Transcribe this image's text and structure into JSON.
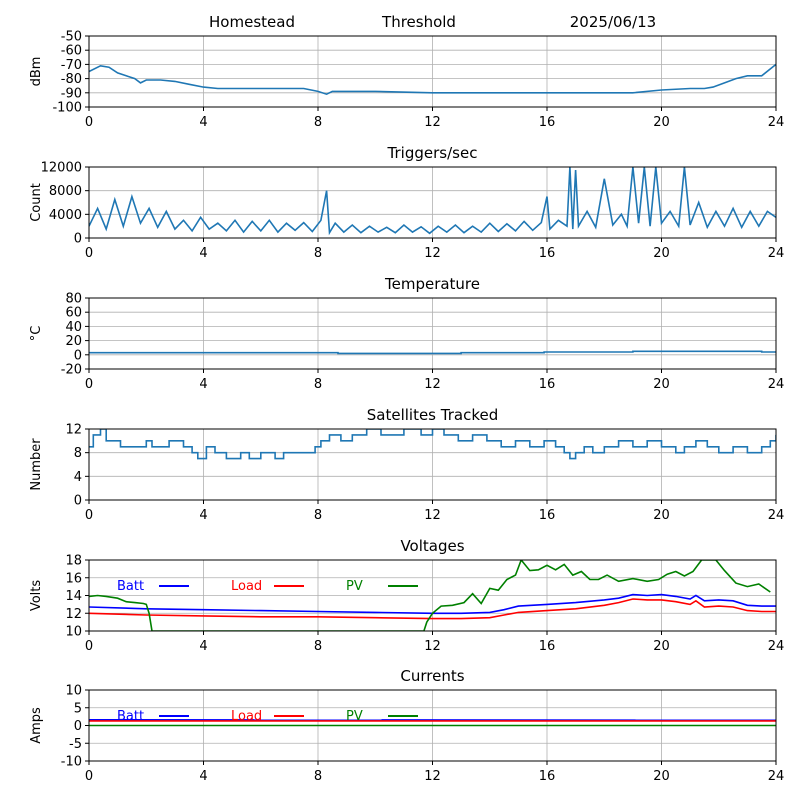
{
  "header": {
    "station": "Homestead",
    "mode": "Threshold",
    "date": "2025/06/13"
  },
  "colors": {
    "series_default": "#1f77b4",
    "batt": "#0000ff",
    "load": "#ff0000",
    "pv": "#008000",
    "grid": "#b0b0b0"
  },
  "chart_data": [
    {
      "type": "line",
      "title": "",
      "ylabel": "dBm",
      "xlim": [
        0,
        24
      ],
      "ylim": [
        -100,
        -50
      ],
      "xticks": [
        0,
        4,
        8,
        12,
        16,
        20,
        24
      ],
      "yticks": [
        -100,
        -90,
        -80,
        -70,
        -60,
        -50
      ],
      "grid": true,
      "series": [
        {
          "color": "#1f77b4",
          "x": [
            0,
            0.4,
            0.7,
            1.0,
            1.3,
            1.6,
            1.8,
            2.0,
            2.5,
            3.0,
            3.5,
            4.0,
            4.5,
            5.0,
            6.0,
            7.0,
            7.5,
            8.0,
            8.3,
            8.5,
            9.0,
            10.0,
            12.0,
            14.0,
            16.0,
            18.0,
            19.0,
            20.0,
            21.0,
            21.5,
            21.8,
            22.2,
            22.6,
            23.0,
            23.5,
            24.0
          ],
          "y": [
            -75,
            -71,
            -72,
            -76,
            -78,
            -80,
            -83,
            -81,
            -81,
            -82,
            -84,
            -86,
            -87,
            -87,
            -87,
            -87,
            -87,
            -89,
            -91,
            -89,
            -89,
            -89,
            -90,
            -90,
            -90,
            -90,
            -90,
            -88,
            -87,
            -87,
            -86,
            -83,
            -80,
            -78,
            -78,
            -70
          ]
        }
      ]
    },
    {
      "type": "line",
      "title": "Triggers/sec",
      "ylabel": "Count",
      "xlim": [
        0,
        24
      ],
      "ylim": [
        0,
        12000
      ],
      "xticks": [
        0,
        4,
        8,
        12,
        16,
        20,
        24
      ],
      "yticks": [
        0,
        4000,
        8000,
        12000
      ],
      "grid": true,
      "series": [
        {
          "color": "#1f77b4",
          "x": [
            0,
            0.3,
            0.6,
            0.9,
            1.2,
            1.5,
            1.8,
            2.1,
            2.4,
            2.7,
            3.0,
            3.3,
            3.6,
            3.9,
            4.2,
            4.5,
            4.8,
            5.1,
            5.4,
            5.7,
            6.0,
            6.3,
            6.6,
            6.9,
            7.2,
            7.5,
            7.8,
            8.1,
            8.3,
            8.4,
            8.6,
            8.9,
            9.2,
            9.5,
            9.8,
            10.1,
            10.4,
            10.7,
            11.0,
            11.3,
            11.6,
            11.9,
            12.2,
            12.5,
            12.8,
            13.1,
            13.4,
            13.7,
            14.0,
            14.3,
            14.6,
            14.9,
            15.2,
            15.5,
            15.8,
            16.0,
            16.1,
            16.4,
            16.7,
            16.8,
            16.9,
            17.0,
            17.1,
            17.4,
            17.7,
            18.0,
            18.3,
            18.6,
            18.8,
            19.0,
            19.2,
            19.4,
            19.6,
            19.8,
            20.0,
            20.3,
            20.6,
            20.8,
            21.0,
            21.3,
            21.6,
            21.9,
            22.2,
            22.5,
            22.8,
            23.1,
            23.4,
            23.7,
            24.0
          ],
          "y": [
            2000,
            5000,
            1500,
            6500,
            2000,
            7000,
            2500,
            5000,
            1800,
            4500,
            1500,
            3000,
            1200,
            3500,
            1500,
            2500,
            1200,
            3000,
            1000,
            2800,
            1200,
            3000,
            1000,
            2500,
            1300,
            2600,
            1100,
            3000,
            8000,
            900,
            2500,
            1000,
            2200,
            900,
            2000,
            1000,
            1800,
            900,
            2200,
            1000,
            1900,
            800,
            2000,
            1000,
            2200,
            900,
            2000,
            1000,
            2500,
            1100,
            2400,
            1200,
            2800,
            1300,
            2600,
            7000,
            1500,
            3000,
            2000,
            12000,
            1500,
            11500,
            2000,
            4500,
            1800,
            10000,
            2200,
            4000,
            2000,
            12000,
            2500,
            12000,
            2000,
            12000,
            2500,
            4500,
            2000,
            12000,
            2200,
            6000,
            1800,
            4500,
            2000,
            5000,
            1800,
            4500,
            2000,
            4500,
            3500
          ]
        }
      ]
    },
    {
      "type": "line",
      "title": "Temperature",
      "ylabel": "°C",
      "xlim": [
        0,
        24
      ],
      "ylim": [
        -20,
        80
      ],
      "xticks": [
        0,
        4,
        8,
        12,
        16,
        20,
        24
      ],
      "yticks": [
        -20,
        0,
        20,
        40,
        60,
        80
      ],
      "grid": true,
      "series": [
        {
          "color": "#1f77b4",
          "x": [
            0,
            8.7,
            8.7,
            13.0,
            13.0,
            15.9,
            15.9,
            19.0,
            19.0,
            23.5,
            23.5,
            24.0
          ],
          "y": [
            3,
            3,
            2,
            2,
            3,
            3,
            4,
            4,
            5,
            5,
            4,
            4
          ]
        }
      ]
    },
    {
      "type": "line",
      "title": "Satellites Tracked",
      "ylabel": "Number",
      "xlim": [
        0,
        24
      ],
      "ylim": [
        0,
        12
      ],
      "xticks": [
        0,
        4,
        8,
        12,
        16,
        20,
        24
      ],
      "yticks": [
        0,
        4,
        8,
        12
      ],
      "grid": true,
      "step": true,
      "series": [
        {
          "color": "#1f77b4",
          "x": [
            0,
            0.15,
            0.4,
            0.6,
            1.1,
            2.0,
            2.2,
            2.8,
            3.3,
            3.6,
            3.8,
            4.1,
            4.4,
            4.8,
            5.3,
            5.6,
            6.0,
            6.5,
            6.8,
            7.3,
            7.9,
            8.1,
            8.4,
            8.8,
            9.2,
            9.7,
            10.2,
            11.0,
            11.6,
            12.0,
            12.4,
            12.9,
            13.4,
            13.9,
            14.4,
            14.9,
            15.4,
            15.9,
            16.3,
            16.6,
            16.8,
            17.0,
            17.3,
            17.6,
            18.0,
            18.5,
            19.0,
            19.5,
            20.0,
            20.5,
            20.8,
            21.2,
            21.6,
            22.0,
            22.5,
            23.0,
            23.5,
            23.8,
            24.0
          ],
          "y": [
            9,
            11,
            12,
            10,
            9,
            10,
            9,
            10,
            9,
            8,
            7,
            9,
            8,
            7,
            8,
            7,
            8,
            7,
            8,
            8,
            9,
            10,
            11,
            10,
            11,
            12,
            11,
            12,
            11,
            12,
            11,
            10,
            11,
            10,
            9,
            10,
            9,
            10,
            9,
            8,
            7,
            8,
            9,
            8,
            9,
            10,
            9,
            10,
            9,
            8,
            9,
            10,
            9,
            8,
            9,
            8,
            9,
            10,
            11
          ]
        }
      ]
    },
    {
      "type": "line",
      "title": "Voltages",
      "ylabel": "Volts",
      "xlim": [
        0,
        24
      ],
      "ylim": [
        10,
        18
      ],
      "xticks": [
        0,
        4,
        8,
        12,
        16,
        20,
        24
      ],
      "yticks": [
        10,
        12,
        14,
        16,
        18
      ],
      "grid": true,
      "legend": "inside-top-left",
      "series": [
        {
          "name": "Batt",
          "color": "#0000ff",
          "x": [
            0,
            2,
            4,
            6,
            8,
            10,
            12,
            13,
            14,
            14.5,
            15,
            16,
            17,
            18,
            18.5,
            19,
            19.5,
            20,
            20.5,
            21,
            21.2,
            21.5,
            22,
            22.5,
            23,
            23.5,
            24
          ],
          "y": [
            12.7,
            12.5,
            12.4,
            12.3,
            12.2,
            12.1,
            12.0,
            12.0,
            12.1,
            12.4,
            12.8,
            13.0,
            13.2,
            13.5,
            13.7,
            14.1,
            14.0,
            14.1,
            13.9,
            13.6,
            14.0,
            13.4,
            13.5,
            13.4,
            12.9,
            12.8,
            12.8
          ]
        },
        {
          "name": "Load",
          "color": "#ff0000",
          "x": [
            0,
            2,
            4,
            6,
            8,
            10,
            12,
            13,
            14,
            14.5,
            15,
            16,
            17,
            18,
            18.5,
            19,
            19.5,
            20,
            20.5,
            21,
            21.2,
            21.5,
            22,
            22.5,
            23,
            23.5,
            24
          ],
          "y": [
            12.0,
            11.8,
            11.7,
            11.6,
            11.6,
            11.5,
            11.4,
            11.4,
            11.5,
            11.8,
            12.1,
            12.3,
            12.5,
            12.9,
            13.2,
            13.6,
            13.5,
            13.5,
            13.3,
            13.0,
            13.4,
            12.7,
            12.8,
            12.7,
            12.3,
            12.2,
            12.2
          ]
        },
        {
          "name": "PV",
          "color": "#008000",
          "x": [
            0,
            0.3,
            0.6,
            1.0,
            1.3,
            1.6,
            1.9,
            2.0,
            2.1,
            2.2,
            11.7,
            11.8,
            12.0,
            12.3,
            12.7,
            13.1,
            13.4,
            13.7,
            14.0,
            14.3,
            14.6,
            14.9,
            15.1,
            15.4,
            15.7,
            16.0,
            16.3,
            16.6,
            16.9,
            17.2,
            17.5,
            17.8,
            18.1,
            18.5,
            19.0,
            19.5,
            19.9,
            20.2,
            20.5,
            20.8,
            21.1,
            21.4,
            21.9,
            22.2,
            22.6,
            23.0,
            23.4,
            23.8
          ],
          "y": [
            13.9,
            14.0,
            13.9,
            13.7,
            13.3,
            13.2,
            13.1,
            13.0,
            12.0,
            10.0,
            10.0,
            11.0,
            12.0,
            12.8,
            12.9,
            13.2,
            14.2,
            13.1,
            14.8,
            14.6,
            15.8,
            16.3,
            18.0,
            16.8,
            16.9,
            17.4,
            16.9,
            17.5,
            16.3,
            16.7,
            15.8,
            15.8,
            16.3,
            15.6,
            15.9,
            15.6,
            15.8,
            16.4,
            16.7,
            16.2,
            16.7,
            18.0,
            18.0,
            16.8,
            15.4,
            15.0,
            15.3,
            14.4
          ]
        }
      ]
    },
    {
      "type": "line",
      "title": "Currents",
      "ylabel": "Amps",
      "xlim": [
        0,
        24
      ],
      "ylim": [
        -10,
        10
      ],
      "xticks": [
        0,
        4,
        8,
        12,
        16,
        20,
        24
      ],
      "yticks": [
        -10,
        -5,
        0,
        5,
        10
      ],
      "grid": true,
      "legend": "inside-top-left",
      "series": [
        {
          "name": "Batt",
          "color": "#0000ff",
          "x": [
            0,
            24
          ],
          "y": [
            1.6,
            1.5
          ]
        },
        {
          "name": "Load",
          "color": "#ff0000",
          "x": [
            0,
            24
          ],
          "y": [
            1.3,
            1.3
          ]
        },
        {
          "name": "PV",
          "color": "#008000",
          "x": [
            0,
            24
          ],
          "y": [
            0.0,
            0.0
          ]
        }
      ]
    }
  ]
}
